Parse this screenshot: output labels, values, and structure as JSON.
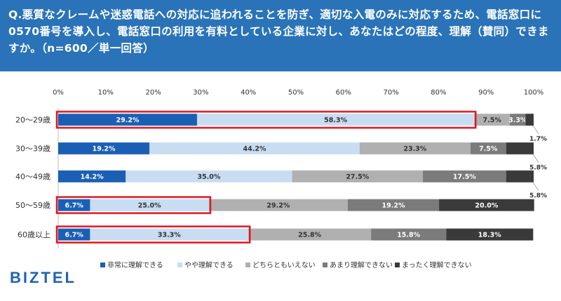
{
  "question": "Q.悪質なクレームや迷惑電話への対応に追われることを防ぎ、適切な入電のみに対応するため、電話窓口に0570番号を導入し、電話窓口の利用を有料としている企業に対し、あなたはどの程度、理解（賛同）できますか。（n=600／単一回答）",
  "brand": "BIZTEL",
  "colors": {
    "header_bg": "#2a73b8",
    "highlight_border": "#e0161e",
    "series": [
      "#1b5fb5",
      "#c8dcf2",
      "#b0b0b0",
      "#7b7b7b",
      "#3a3a3a"
    ]
  },
  "chart_data": {
    "type": "bar",
    "orientation": "horizontal",
    "stacked": true,
    "xlim": [
      0,
      100
    ],
    "xticks": [
      "0%",
      "10%",
      "20%",
      "30%",
      "40%",
      "50%",
      "60%",
      "70%",
      "80%",
      "90%",
      "100%"
    ],
    "categories": [
      "20～29歳",
      "30～39歳",
      "40～49歳",
      "50～59歳",
      "60歳以上"
    ],
    "series": [
      {
        "name": "非常に理解できる",
        "values": [
          29.2,
          19.2,
          14.2,
          6.7,
          6.7
        ]
      },
      {
        "name": "やや理解できる",
        "values": [
          58.3,
          44.2,
          35.0,
          25.0,
          33.3
        ]
      },
      {
        "name": "どちらともいえない",
        "values": [
          7.5,
          23.3,
          27.5,
          29.2,
          25.8
        ]
      },
      {
        "name": "あまり理解できない",
        "values": [
          3.3,
          7.5,
          17.5,
          19.2,
          15.8
        ]
      },
      {
        "name": "まったく理解できない",
        "values": [
          1.7,
          5.8,
          5.8,
          20.0,
          18.3
        ]
      }
    ],
    "value_labels": [
      [
        "29.2%",
        "58.3%",
        "7.5%",
        "3.3%",
        "1.7%"
      ],
      [
        "19.2%",
        "44.2%",
        "23.3%",
        "7.5%",
        "5.8%"
      ],
      [
        "14.2%",
        "35.0%",
        "27.5%",
        "17.5%",
        "5.8%"
      ],
      [
        "6.7%",
        "25.0%",
        "29.2%",
        "19.2%",
        "20.0%"
      ],
      [
        "6.7%",
        "33.3%",
        "25.8%",
        "15.8%",
        "18.3%"
      ]
    ],
    "outside_labels": [
      true,
      true,
      true,
      false,
      false
    ],
    "highlights": [
      {
        "row": 0,
        "series_count": 2
      },
      {
        "row": 3,
        "series_count": 2
      },
      {
        "row": 4,
        "series_count": 2
      }
    ],
    "legend": [
      "非常に理解できる",
      "やや理解できる",
      "どちらともいえない",
      "あまり理解できない",
      "まったく理解できない"
    ],
    "legend_position": "bottom"
  }
}
